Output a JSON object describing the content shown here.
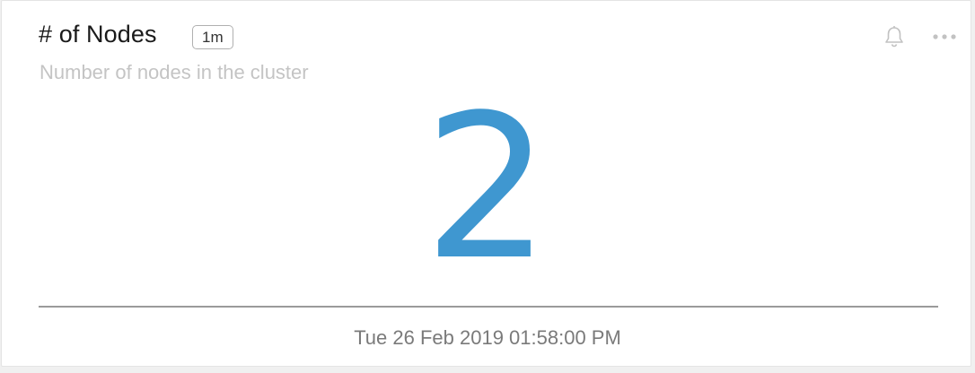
{
  "widget": {
    "title": "# of Nodes",
    "interval_badge": "1m",
    "subtitle": "Number of nodes in the cluster",
    "value": "2",
    "timestamp": "Tue 26 Feb 2019 01:58:00 PM",
    "value_color": "#3f97d0",
    "icons": {
      "alert": "bell-icon",
      "menu": "more-options-icon"
    }
  }
}
